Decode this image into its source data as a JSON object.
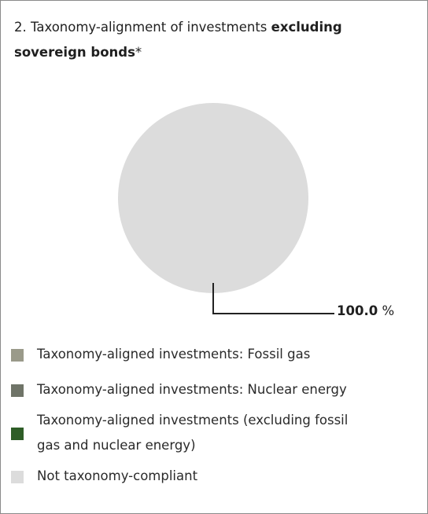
{
  "title": {
    "prefix": "2. Taxonomy-alignment of investments ",
    "bold": "excluding sovereign bonds",
    "suffix": "*"
  },
  "chart_data": {
    "type": "pie",
    "title": "2. Taxonomy-alignment of investments excluding sovereign bonds*",
    "slices": [
      {
        "name": "Taxonomy-aligned investments: Fossil gas",
        "value": 0.0,
        "color": "#9a9a8a"
      },
      {
        "name": "Taxonomy-aligned investments: Nuclear energy",
        "value": 0.0,
        "color": "#6f7468"
      },
      {
        "name": "Taxonomy-aligned investments (excluding fossil gas and nuclear energy)",
        "value": 0.0,
        "color": "#2e5d27"
      },
      {
        "name": "Not taxonomy-compliant",
        "value": 100.0,
        "color": "#dcdcdc"
      }
    ],
    "data_labels": [
      {
        "slice": "Not taxonomy-compliant",
        "value_text": "100.0",
        "unit": " %"
      }
    ],
    "legend": "bottom"
  },
  "legend_items": [
    {
      "line1": "Taxonomy-aligned investments: Fossil gas",
      "line2": "",
      "color": "#9a9a8a"
    },
    {
      "line1": "Taxonomy-aligned investments: Nuclear energy",
      "line2": "",
      "color": "#6f7468"
    },
    {
      "line1": "Taxonomy-aligned investments (excluding fossil",
      "line2": "gas and nuclear energy)",
      "color": "#2e5d27"
    },
    {
      "line1": "Not taxonomy-compliant",
      "line2": "",
      "color": "#dcdcdc"
    }
  ]
}
